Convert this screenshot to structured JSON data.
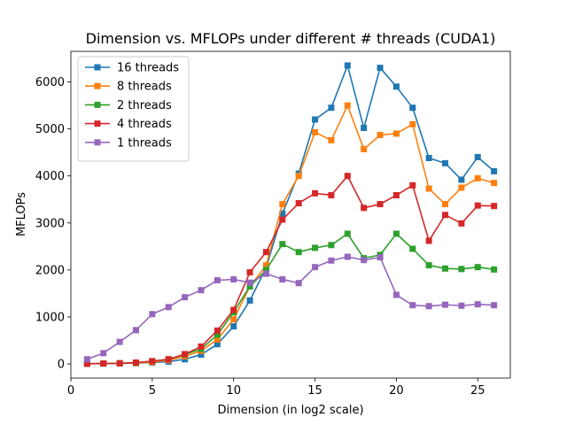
{
  "chart_data": {
    "type": "line",
    "title": "Dimension vs. MFLOPs under different # threads (CUDA1)",
    "xlabel": "Dimension (in log2 scale)",
    "ylabel": "MFLOPs",
    "xlim": [
      0,
      27
    ],
    "ylim": [
      -300,
      6650
    ],
    "xticks": [
      0,
      5,
      10,
      15,
      20,
      25
    ],
    "yticks": [
      0,
      1000,
      2000,
      3000,
      4000,
      5000,
      6000
    ],
    "grid": false,
    "legend_position": "top-left",
    "marker": "square",
    "x": [
      1,
      2,
      3,
      4,
      5,
      6,
      7,
      8,
      9,
      10,
      11,
      12,
      13,
      14,
      15,
      16,
      17,
      18,
      19,
      20,
      21,
      22,
      23,
      24,
      25,
      26
    ],
    "series": [
      {
        "name": "16 threads",
        "color": "#1f77b4",
        "values": [
          5,
          8,
          12,
          18,
          30,
          50,
          100,
          200,
          420,
          800,
          1350,
          2050,
          3200,
          4050,
          5200,
          5450,
          6350,
          5020,
          6300,
          5900,
          5450,
          4380,
          4270,
          3920,
          4400,
          4100
        ]
      },
      {
        "name": "8 threads",
        "color": "#ff7f0e",
        "values": [
          5,
          10,
          15,
          20,
          40,
          80,
          160,
          280,
          520,
          950,
          1650,
          2100,
          3400,
          4000,
          4930,
          4760,
          5500,
          4570,
          4870,
          4900,
          5100,
          3730,
          3400,
          3750,
          3950,
          3850
        ]
      },
      {
        "name": "2 threads",
        "color": "#2ca02c",
        "values": [
          5,
          10,
          15,
          25,
          60,
          100,
          200,
          320,
          620,
          1100,
          1650,
          2000,
          2550,
          2380,
          2470,
          2530,
          2770,
          2250,
          2320,
          2770,
          2450,
          2100,
          2030,
          2020,
          2060,
          2010
        ]
      },
      {
        "name": "4 threads",
        "color": "#d62728",
        "values": [
          5,
          10,
          15,
          30,
          60,
          100,
          210,
          370,
          710,
          1150,
          1950,
          2380,
          3070,
          3420,
          3630,
          3590,
          4000,
          3320,
          3400,
          3590,
          3800,
          2620,
          3170,
          2990,
          3370,
          3360
        ]
      },
      {
        "name": "1 threads",
        "color": "#9467bd",
        "values": [
          100,
          230,
          470,
          720,
          1060,
          1210,
          1420,
          1570,
          1780,
          1800,
          1730,
          1920,
          1800,
          1720,
          2060,
          2200,
          2280,
          2210,
          2270,
          1470,
          1250,
          1230,
          1260,
          1240,
          1270,
          1250
        ]
      }
    ]
  }
}
